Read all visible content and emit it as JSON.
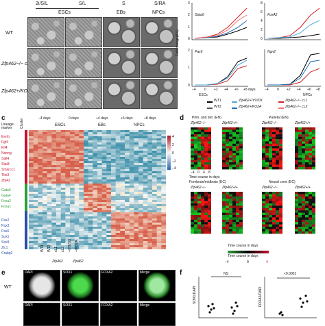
{
  "panel_a": {
    "header_top": [
      "2i/S/L",
      "S/L",
      "S",
      "S/RA"
    ],
    "header_sub": [
      "ESCs",
      "EBs",
      "NPCs"
    ],
    "rows": [
      "WT",
      "Zfp462−/− cL1",
      "Zfp462+/KO2A"
    ]
  },
  "panel_b": {
    "ylabel": "Fold change(Δ%)",
    "genes": [
      "Gata6",
      "FoxA2",
      "Pax6",
      "Ngn2"
    ],
    "y_ticks_left": [
      "3",
      "2",
      "1",
      "0"
    ],
    "y_ticks_mid": [
      "8",
      "6",
      "4",
      "2",
      "0"
    ],
    "y_ticks_pax": [
      "2",
      "1",
      "0"
    ],
    "x_ticks": [
      "−4",
      "0",
      "+2",
      "+4",
      "+6",
      "+8"
    ],
    "x_label_left": "ESCs",
    "x_label_right": "NPCs",
    "x_suffix": "days",
    "legend": [
      {
        "label": "WT1",
        "color": "#000000"
      },
      {
        "label": "WT2",
        "color": "#555555"
      },
      {
        "label": "Zfp462+/Y970X",
        "color": "#4fa8e0"
      },
      {
        "label": "Zfp462+/KO2A",
        "color": "#1f6fb5"
      },
      {
        "label": "Zfp462−/− cL1",
        "color": "#d22020"
      },
      {
        "label": "Zfp462−/− cL2",
        "color": "#ff6a6a"
      }
    ]
  },
  "panel_c": {
    "label": "c",
    "col_headers": [
      "−4 days",
      "0 days",
      "+4 days",
      "+6 days",
      "+8 days"
    ],
    "stage_labels": [
      "ESCs",
      "EBs",
      "NPCs"
    ],
    "cluster_label": "Cluster",
    "lineage_label": "Lineage marker",
    "markers_red": [
      "Esrrb",
      "Fgf4",
      "Klf4",
      "Nanog",
      "Sall4",
      "Stat3",
      "Smarcc1",
      "Tbx3",
      "Zfp42"
    ],
    "markers_green": [
      "Gata6",
      "Gata4",
      "Foxa2",
      "Foxa1"
    ],
    "markers_blue": [
      "Pax2",
      "Pax3",
      "Pax6",
      "Sox1",
      "Sox9",
      "Zic1",
      "Crabp2"
    ],
    "colorbar_ticks": [
      "4",
      "2",
      "0",
      "−2",
      "−4"
    ],
    "x_bottom": [
      "WT1",
      "WT2",
      "cL1",
      "cL2",
      "+/Y970X",
      "+/KO2A"
    ],
    "group_bottom": [
      "Zfp462",
      "Zfp462"
    ]
  },
  "panel_d": {
    "label": "d",
    "titles": [
      "Prim. and def. (EN)",
      "Parietal (EN)",
      "Forebrain/midbrain (EC)",
      "Neural crest (EC)"
    ],
    "genotype_left": "Zfp462−/−",
    "genotype_right": "Zfp462+/+",
    "x_ticks": [
      "−4",
      "0",
      "4",
      "8"
    ],
    "x_label": "Time course in days",
    "colorbar": [
      "−4",
      "0",
      "4"
    ]
  },
  "panel_e": {
    "label": "e",
    "row_label": "WT",
    "channels": [
      "DAPI",
      "SOX1",
      "FOXA2",
      "Merge"
    ]
  },
  "panel_f": {
    "label": "f",
    "ylabel1": "SOX1/DAPI",
    "ylabel2": "FOXA2/DAPI",
    "ns_label": "NS",
    "pval": "<0.0001"
  },
  "colors": {
    "red": "#c8102e",
    "green": "#2e9e3a",
    "blue": "#2a4fa8",
    "heat_hot": "#d7301f",
    "heat_cold": "#2166ac"
  }
}
